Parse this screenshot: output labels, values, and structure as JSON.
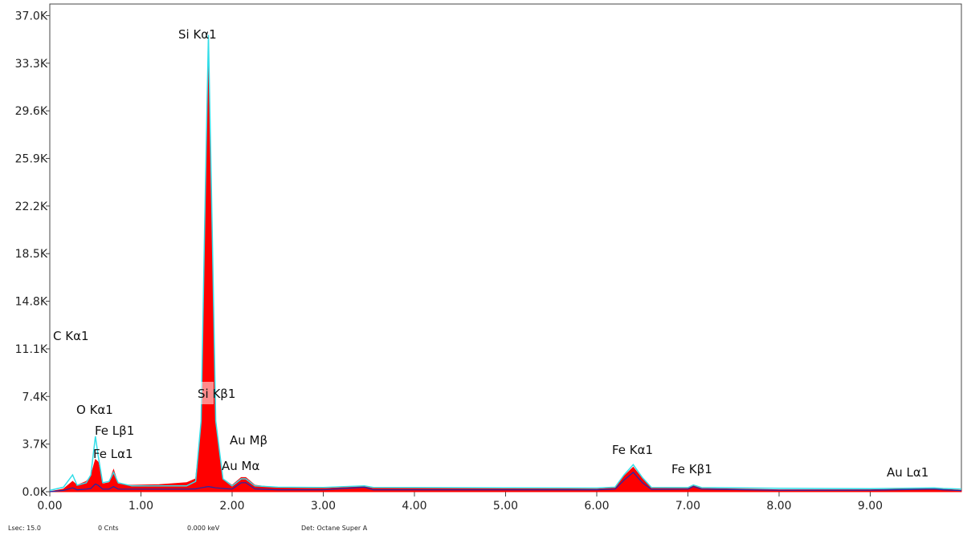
{
  "chart_data": {
    "type": "area",
    "x": [
      0.0,
      0.15,
      0.25,
      0.3,
      0.4,
      0.45,
      0.5,
      0.53,
      0.58,
      0.65,
      0.7,
      0.75,
      0.9,
      1.2,
      1.5,
      1.6,
      1.66,
      1.7,
      1.74,
      1.78,
      1.82,
      1.9,
      2.0,
      2.1,
      2.15,
      2.25,
      2.5,
      3.0,
      3.45,
      3.55,
      4.0,
      5.0,
      6.0,
      6.2,
      6.3,
      6.4,
      6.5,
      6.6,
      7.0,
      7.06,
      7.15,
      8.0,
      9.0,
      9.7,
      9.8,
      10.0
    ],
    "series": [
      {
        "color": "#ff0000",
        "values": [
          0,
          200,
          800,
          500,
          800,
          1200,
          2500,
          2300,
          600,
          700,
          1700,
          600,
          500,
          550,
          700,
          1000,
          5000,
          20000,
          35000,
          20000,
          5000,
          1000,
          500,
          1100,
          1100,
          500,
          300,
          250,
          400,
          250,
          250,
          250,
          200,
          300,
          1200,
          1900,
          1000,
          250,
          300,
          500,
          250,
          150,
          150,
          250,
          200,
          100
        ]
      },
      {
        "color": "#33dde8",
        "values": [
          100,
          350,
          1300,
          500,
          700,
          1300,
          4300,
          2800,
          700,
          800,
          1500,
          700,
          450,
          450,
          450,
          800,
          5500,
          21000,
          35500,
          21000,
          5500,
          1000,
          450,
          1000,
          1000,
          450,
          350,
          330,
          450,
          330,
          320,
          300,
          280,
          350,
          1300,
          2100,
          1100,
          330,
          320,
          520,
          320,
          260,
          230,
          300,
          250,
          200
        ]
      },
      {
        "color": "#1a2bb0",
        "values": [
          0,
          100,
          300,
          150,
          200,
          250,
          600,
          500,
          200,
          200,
          400,
          200,
          200,
          200,
          200,
          220,
          300,
          350,
          400,
          350,
          300,
          250,
          200,
          700,
          700,
          220,
          150,
          150,
          350,
          150,
          150,
          150,
          150,
          200,
          900,
          1500,
          700,
          180,
          200,
          400,
          200,
          120,
          120,
          200,
          150,
          80
        ]
      }
    ],
    "xlim": [
      0,
      10
    ],
    "ylim": [
      0,
      37900
    ],
    "xticks": [
      {
        "value": 0,
        "label": "0.00"
      },
      {
        "value": 1,
        "label": "1.00"
      },
      {
        "value": 2,
        "label": "2.00"
      },
      {
        "value": 3,
        "label": "3.00"
      },
      {
        "value": 4,
        "label": "4.00"
      },
      {
        "value": 5,
        "label": "5.00"
      },
      {
        "value": 6,
        "label": "6.00"
      },
      {
        "value": 7,
        "label": "7.00"
      },
      {
        "value": 8,
        "label": "8.00"
      },
      {
        "value": 9,
        "label": "9.00"
      }
    ],
    "yticks": [
      {
        "value": 0,
        "label": "0.0K"
      },
      {
        "value": 3700,
        "label": "3.7K"
      },
      {
        "value": 7400,
        "label": "7.4K"
      },
      {
        "value": 11100,
        "label": "11.1K"
      },
      {
        "value": 14800,
        "label": "14.8K"
      },
      {
        "value": 18500,
        "label": "18.5K"
      },
      {
        "value": 22200,
        "label": "22.2K"
      },
      {
        "value": 25900,
        "label": "25.9K"
      },
      {
        "value": 29600,
        "label": "29.6K"
      },
      {
        "value": 33300,
        "label": "33.3K"
      },
      {
        "value": 37000,
        "label": "37.0K"
      }
    ],
    "annotations": [
      "Si Kα1",
      "Si Kβ1",
      "C  Kα1",
      "O  Kα1",
      "Fe Lβ1",
      "Fe Lα1",
      "Au Mβ",
      "Au Mα",
      "Fe Kα1",
      "Fe Kβ1",
      "Au Lα1"
    ],
    "footer": [
      "Lsec: 15.0",
      "0 Cnts",
      "0.000 keV",
      "Det: Octane Super A"
    ]
  }
}
